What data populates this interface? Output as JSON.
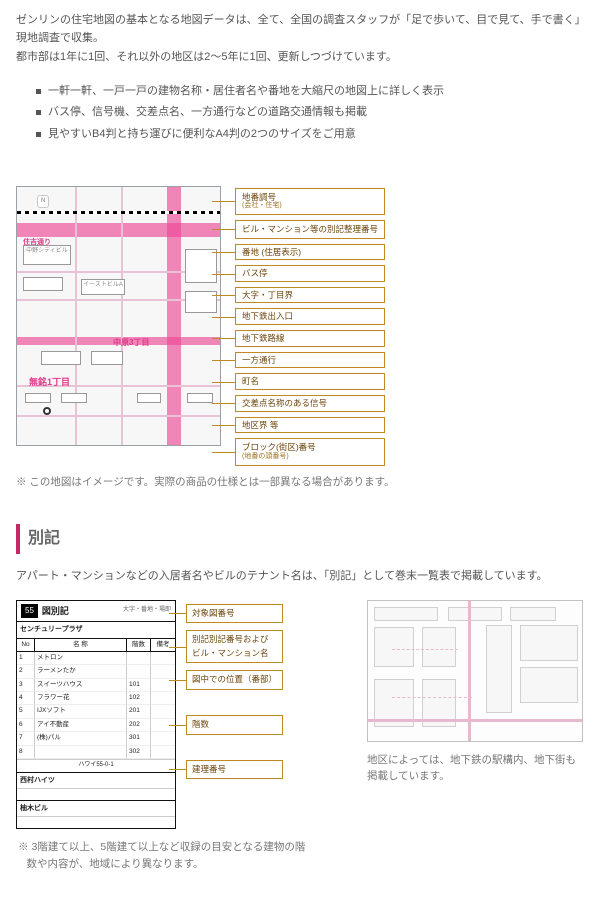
{
  "intro": {
    "p1": "ゼンリンの住宅地図の基本となる地図データは、全て、全国の調査スタッフが「足で歩いて、目で見て、手で書く」現地調査で収集。",
    "p2": "都市部は1年に1回、それ以外の地区は2〜5年に1回、更新しつづけています。"
  },
  "features": [
    "一軒一軒、一戸一戸の建物名称・居住者名や番地を大縮尺の地図上に詳しく表示",
    "バス停、信号機、交差点名、一方通行などの道路交通情報も掲載",
    "見やすいB4判と持ち運びに便利なA4判の2つのサイズをご用意"
  ],
  "sample_map": {
    "callouts": [
      {
        "label": "地番調号",
        "sub": "(会社・住宅)"
      },
      {
        "label": "ビル・マンション等の別記整理番号"
      },
      {
        "label": "番地 (住居表示)"
      },
      {
        "label": "バス停"
      },
      {
        "label": "大字・丁目界"
      },
      {
        "label": "地下鉄出入口"
      },
      {
        "label": "地下鉄路線"
      },
      {
        "label": "一方通行"
      },
      {
        "label": "町名"
      },
      {
        "label": "交差点名称のある信号"
      },
      {
        "label": "地区界 等"
      },
      {
        "label": "ブロック(街区)番号",
        "sub": "(地番の頭番号)"
      }
    ],
    "wards": [
      "住吉通り",
      "中原3丁目",
      "無銘1丁目"
    ],
    "bldg_labels": [
      "中野シティビル",
      "イーストビルA"
    ],
    "small_label": "N",
    "caption": "※ この地図はイメージです。実際の商品の仕様とは一部異なる場合があります。"
  },
  "section": {
    "title": "別記"
  },
  "bekki": {
    "lead": "アパート・マンションなどの入居者名やビルのテナント名は、「別記」として巻末一覧表で掲載しています。",
    "zu": {
      "badge": "55",
      "title": "図別記",
      "sub_addr": "大字・番地・場即",
      "header": [
        "No",
        "名  称",
        "階数",
        "備考"
      ],
      "row1_name": "センチュリープラザ",
      "row1_addr": "ハワイ55-0-1",
      "rows": [
        [
          "1",
          "メトロン",
          "",
          ""
        ],
        [
          "2",
          "ラーメンたか",
          "",
          ""
        ],
        [
          "3",
          "スイーツハウス",
          "101",
          ""
        ],
        [
          "4",
          "フラワー花",
          "102",
          ""
        ],
        [
          "5",
          "IJXソフト",
          "201",
          ""
        ],
        [
          "6",
          "アイ不動産",
          "202",
          ""
        ],
        [
          "7",
          "(株)パル",
          "301",
          ""
        ],
        [
          "8",
          "",
          "302",
          ""
        ]
      ],
      "row2_name": "西村ハイツ",
      "row3_name": "柚木ビル"
    },
    "zu_callouts": [
      "対象図番号",
      "別記別記番号および\nビル・マンション名",
      "図中での位置（番部）",
      "階数",
      "建理番号"
    ],
    "note_left": "※ 3階建て以上、5階建て以上など収録の目安となる建物の階数や内容が、地域により異なります。",
    "note_right": "地区によっては、地下鉄の駅構内、地下街も掲載しています。"
  },
  "colors": {
    "accent": "#c62866",
    "callout_border": "#c08a20",
    "road": "#e76db0"
  }
}
